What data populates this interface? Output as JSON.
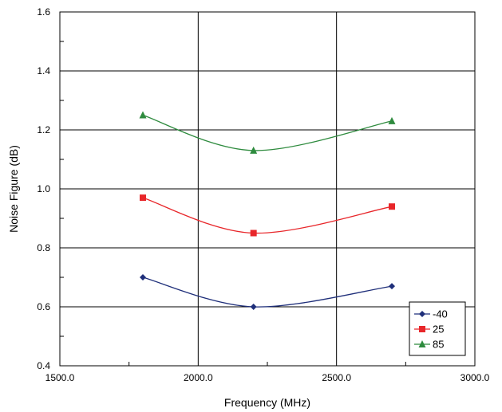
{
  "chart_data": {
    "type": "line",
    "xlabel": "Frequency (MHz)",
    "ylabel": "Noise Figure (dB)",
    "xlim": [
      1500,
      3000
    ],
    "ylim": [
      0.4,
      1.6
    ],
    "x_ticks": [
      "1500.0",
      "2000.0",
      "2500.0",
      "3000.0"
    ],
    "y_ticks": [
      "0.4",
      "0.6",
      "0.8",
      "1.0",
      "1.2",
      "1.4",
      "1.6"
    ],
    "grid": true,
    "legend_position": "bottom-right",
    "series": [
      {
        "name": "-40",
        "color": "#1f2f7a",
        "marker": "diamond",
        "x": [
          1800,
          2200,
          2700
        ],
        "y": [
          0.7,
          0.6,
          0.67
        ]
      },
      {
        "name": "25",
        "color": "#e8262a",
        "marker": "square",
        "x": [
          1800,
          2200,
          2700
        ],
        "y": [
          0.97,
          0.85,
          0.94
        ]
      },
      {
        "name": "85",
        "color": "#2e8b3e",
        "marker": "triangle",
        "x": [
          1800,
          2200,
          2700
        ],
        "y": [
          1.25,
          1.13,
          1.23
        ]
      }
    ]
  }
}
